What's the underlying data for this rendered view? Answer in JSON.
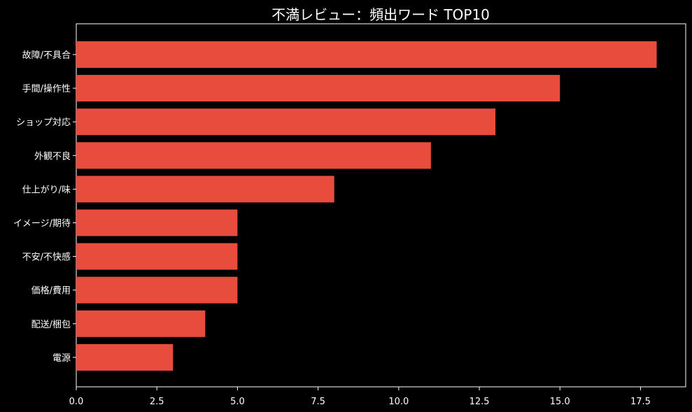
{
  "chart_data": {
    "type": "bar",
    "orientation": "horizontal",
    "title": "不満レビュー：頻出ワード TOP10",
    "xlabel": "",
    "ylabel": "",
    "categories": [
      "故障/不具合",
      "手間/操作性",
      "ショップ対応",
      "外観不良",
      "仕上がり/味",
      "イメージ/期待",
      "不安/不快感",
      "価格/費用",
      "配送/梱包",
      "電源"
    ],
    "values": [
      18,
      15,
      13,
      11,
      8,
      5,
      5,
      5,
      4,
      3
    ],
    "xlim": [
      0,
      18.9
    ],
    "xticks": [
      "0.0",
      "2.5",
      "5.0",
      "7.5",
      "10.0",
      "12.5",
      "15.0",
      "17.5"
    ],
    "grid": false,
    "bar_color": "#e74c3c",
    "background": "#000000",
    "axis_color": "#ffffff"
  }
}
